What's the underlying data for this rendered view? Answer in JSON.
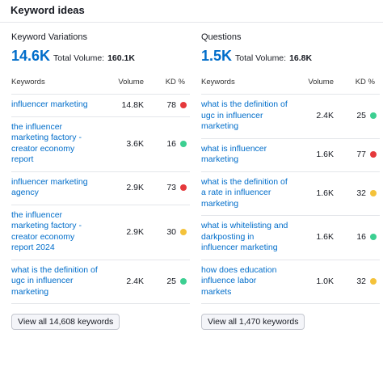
{
  "header": {
    "title": "Keyword ideas"
  },
  "panels": [
    {
      "title": "Keyword Variations",
      "count": "14.6K",
      "volume_label": "Total Volume:",
      "volume": "160.1K",
      "columns": [
        "Keywords",
        "Volume",
        "KD %"
      ],
      "rows": [
        {
          "keyword": "influencer marketing",
          "volume": "14.8K",
          "kd": 78,
          "color": "#e5383b"
        },
        {
          "keyword": "the influencer marketing factory - creator economy report",
          "volume": "3.6K",
          "kd": 16,
          "color": "#3ccf91"
        },
        {
          "keyword": "influencer marketing agency",
          "volume": "2.9K",
          "kd": 73,
          "color": "#e5383b"
        },
        {
          "keyword": "the influencer marketing factory - creator economy report 2024",
          "volume": "2.9K",
          "kd": 30,
          "color": "#f4c23a"
        },
        {
          "keyword": "what is the definition of ugc in influencer marketing",
          "volume": "2.4K",
          "kd": 25,
          "color": "#3ccf91"
        }
      ],
      "button": "View all 14,608 keywords"
    },
    {
      "title": "Questions",
      "count": "1.5K",
      "volume_label": "Total Volume:",
      "volume": "16.8K",
      "columns": [
        "Keywords",
        "Volume",
        "KD %"
      ],
      "rows": [
        {
          "keyword": "what is the definition of ugc in influencer marketing",
          "volume": "2.4K",
          "kd": 25,
          "color": "#3ccf91"
        },
        {
          "keyword": "what is influencer marketing",
          "volume": "1.6K",
          "kd": 77,
          "color": "#e5383b"
        },
        {
          "keyword": "what is the definition of a rate in influencer marketing",
          "volume": "1.6K",
          "kd": 32,
          "color": "#f4c23a"
        },
        {
          "keyword": "what is whitelisting and darkposting in influencer marketing",
          "volume": "1.6K",
          "kd": 16,
          "color": "#3ccf91"
        },
        {
          "keyword": "how does education influence labor markets",
          "volume": "1.0K",
          "kd": 32,
          "color": "#f4c23a"
        }
      ],
      "button": "View all 1,470 keywords"
    }
  ]
}
